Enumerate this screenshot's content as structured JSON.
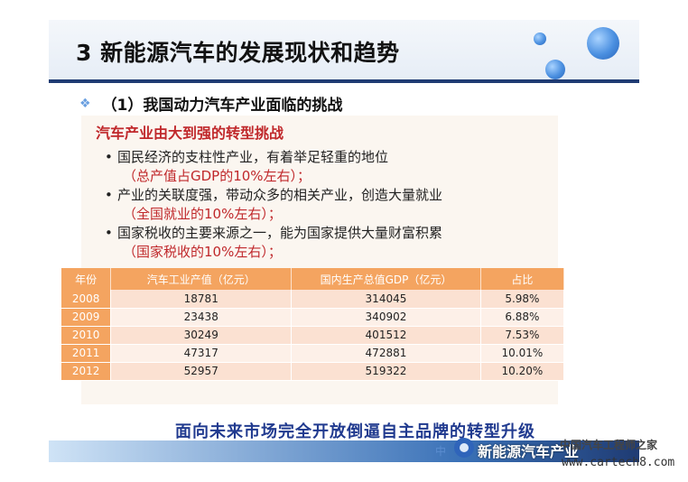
{
  "slide": {
    "title": "3 新能源汽车的发展现状和趋势",
    "subtitle_bullet": "❖",
    "subtitle": "（1）我国动力汽车产业面临的挑战",
    "heading": "汽车产业由大到强的转型挑战",
    "points": [
      {
        "text": "国民经济的支柱性产业，有着举足轻重的地位",
        "note": "（总产值占GDP的10%左右）；"
      },
      {
        "text": "产业的关联度强，带动众多的相关产业，创造大量就业",
        "note": "（全国就业的10%左右）；"
      },
      {
        "text": "国家税收的主要来源之一，能为国家提供大量财富积累",
        "note": "（国家税收的10%左右）；"
      }
    ],
    "table": {
      "headers": [
        "年份",
        "汽车工业产值（亿元）",
        "国内生产总值GDP（亿元）",
        "占比"
      ],
      "rows": [
        [
          "2008",
          "18781",
          "314045",
          "5.98%"
        ],
        [
          "2009",
          "23438",
          "340902",
          "6.88%"
        ],
        [
          "2010",
          "30249",
          "401512",
          "7.53%"
        ],
        [
          "2011",
          "47317",
          "472881",
          "10.01%"
        ],
        [
          "2012",
          "52957",
          "519322",
          "10.20%"
        ]
      ]
    },
    "conclusion": "面向未来市场完全开放倒逼自主品牌的转型升级",
    "footer_fragment": "中"
  },
  "watermark": {
    "main": "新能源汽车产业",
    "site_cn": "中国汽车工程师之家",
    "url": "www.cartech8.com"
  },
  "colors": {
    "header_rule": "#1f3b73",
    "heading_red": "#c0282b",
    "table_header": "#f4a460",
    "conclusion_blue": "#203a8f"
  }
}
